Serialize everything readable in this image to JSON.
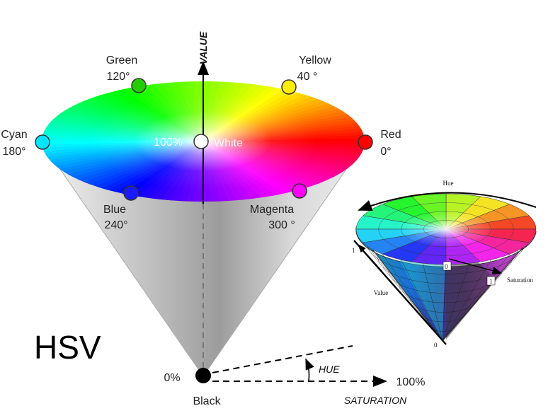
{
  "title": "HSV",
  "axis_labels": {
    "value": "VALUE",
    "hue": "HUE",
    "saturation": "SATURATION"
  },
  "center": {
    "percent": "100%",
    "name": "White"
  },
  "apex": {
    "percent": "0%",
    "name": "Black"
  },
  "saturation_end": "100%",
  "hues": [
    {
      "name": "Green",
      "degree": "120°",
      "color": "#22cc00"
    },
    {
      "name": "Yellow",
      "degree": "40 °",
      "color": "#ffee00"
    },
    {
      "name": "Cyan",
      "degree": "180°",
      "color": "#00e5ff"
    },
    {
      "name": "Red",
      "degree": "0°",
      "color": "#ff0000"
    },
    {
      "name": "Blue",
      "degree": "240°",
      "color": "#1a1aff"
    },
    {
      "name": "Magenta",
      "degree": "300 °",
      "color": "#ff00ff"
    }
  ],
  "inset": {
    "hue": "Hue",
    "value": "Value",
    "saturation": "Saturation",
    "one_top": "1",
    "zero_center": "0",
    "one_sat": "1",
    "zero_bottom": "0"
  }
}
